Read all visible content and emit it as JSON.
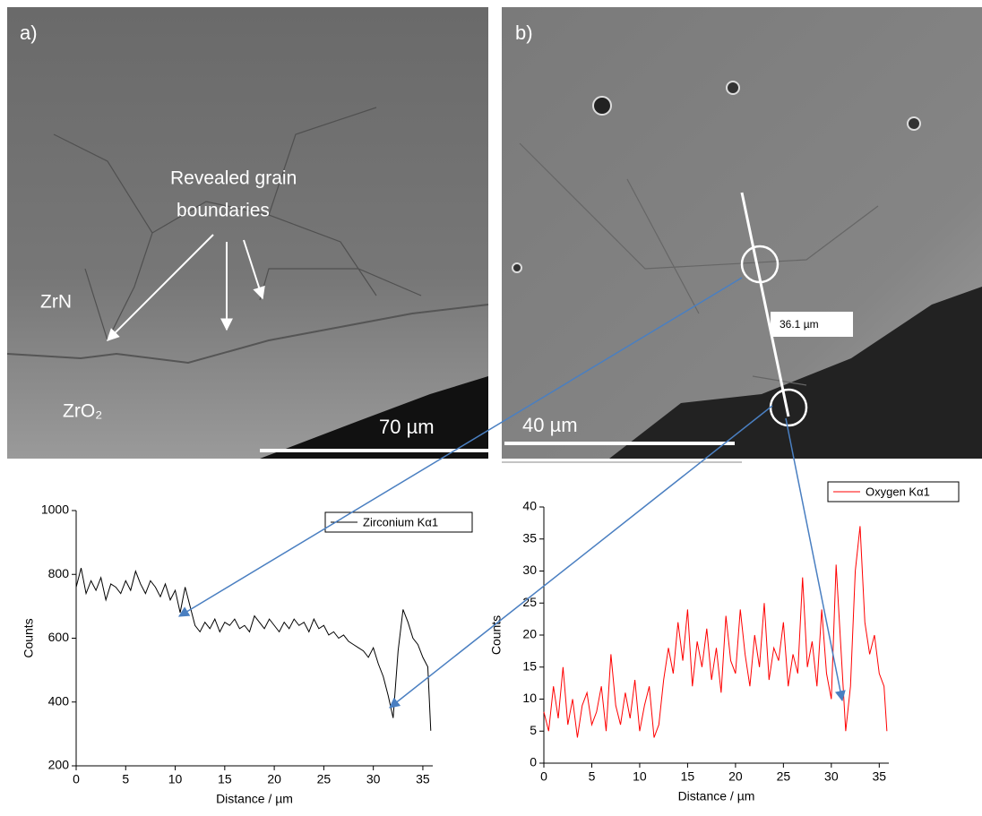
{
  "images": [
    {
      "label": "a)",
      "annotation_lines": [
        "Revealed grain",
        "boundaries"
      ],
      "phase_top": "ZrN",
      "phase_bottom": "ZrO₂",
      "scale_bar": "70 µm"
    },
    {
      "label": "b)",
      "line_length": "36.1 µm",
      "scale_bar": "40 µm"
    }
  ],
  "chart_data": [
    {
      "type": "line",
      "xlabel": "Distance / µm",
      "ylabel": "Counts",
      "x": [
        0,
        0.5,
        1,
        1.5,
        2,
        2.5,
        3,
        3.5,
        4,
        4.5,
        5,
        5.5,
        6,
        6.5,
        7,
        7.5,
        8,
        8.5,
        9,
        9.5,
        10,
        10.5,
        11,
        11.5,
        12,
        12.5,
        13,
        13.5,
        14,
        14.5,
        15,
        15.5,
        16,
        16.5,
        17,
        17.5,
        18,
        18.5,
        19,
        19.5,
        20,
        20.5,
        21,
        21.5,
        22,
        22.5,
        23,
        23.5,
        24,
        24.5,
        25,
        25.5,
        26,
        26.5,
        27,
        27.5,
        28,
        28.5,
        29,
        29.5,
        30,
        30.5,
        31,
        31.5,
        32,
        32.5,
        33,
        33.5,
        34,
        34.5,
        35,
        35.5,
        35.8
      ],
      "series": [
        {
          "name": "Zirconium Kα1",
          "color": "#000000",
          "values": [
            760,
            820,
            740,
            780,
            750,
            790,
            720,
            770,
            760,
            740,
            780,
            750,
            810,
            770,
            740,
            780,
            760,
            730,
            770,
            720,
            750,
            680,
            760,
            700,
            640,
            620,
            650,
            630,
            660,
            620,
            650,
            640,
            660,
            630,
            640,
            620,
            670,
            650,
            630,
            660,
            640,
            620,
            650,
            630,
            660,
            640,
            650,
            620,
            660,
            630,
            640,
            610,
            620,
            600,
            610,
            590,
            580,
            570,
            560,
            540,
            570,
            520,
            480,
            420,
            350,
            560,
            690,
            650,
            600,
            580,
            540,
            510,
            310
          ]
        }
      ],
      "xlim": [
        0,
        36
      ],
      "ylim": [
        200,
        1000
      ],
      "xticks": [
        0,
        5,
        10,
        15,
        20,
        25,
        30,
        35
      ],
      "yticks": [
        200,
        400,
        600,
        800,
        1000
      ]
    },
    {
      "type": "line",
      "xlabel": "Distance / µm",
      "ylabel": "Counts",
      "x": [
        0,
        0.5,
        1,
        1.5,
        2,
        2.5,
        3,
        3.5,
        4,
        4.5,
        5,
        5.5,
        6,
        6.5,
        7,
        7.5,
        8,
        8.5,
        9,
        9.5,
        10,
        10.5,
        11,
        11.5,
        12,
        12.5,
        13,
        13.5,
        14,
        14.5,
        15,
        15.5,
        16,
        16.5,
        17,
        17.5,
        18,
        18.5,
        19,
        19.5,
        20,
        20.5,
        21,
        21.5,
        22,
        22.5,
        23,
        23.5,
        24,
        24.5,
        25,
        25.5,
        26,
        26.5,
        27,
        27.5,
        28,
        28.5,
        29,
        29.5,
        30,
        30.5,
        31,
        31.5,
        32,
        32.5,
        33,
        33.5,
        34,
        34.5,
        35,
        35.5,
        35.8
      ],
      "series": [
        {
          "name": "Oxygen Kα1",
          "color": "#ff0000",
          "values": [
            8,
            5,
            12,
            7,
            15,
            6,
            10,
            4,
            9,
            11,
            6,
            8,
            12,
            5,
            17,
            9,
            6,
            11,
            7,
            13,
            5,
            9,
            12,
            4,
            6,
            13,
            18,
            14,
            22,
            16,
            24,
            12,
            19,
            15,
            21,
            13,
            18,
            11,
            23,
            16,
            14,
            24,
            17,
            12,
            20,
            15,
            25,
            13,
            18,
            16,
            22,
            12,
            17,
            14,
            29,
            15,
            19,
            12,
            24,
            14,
            10,
            31,
            18,
            5,
            12,
            30,
            37,
            22,
            17,
            20,
            14,
            12,
            5
          ]
        }
      ],
      "xlim": [
        0,
        36
      ],
      "ylim": [
        0,
        40
      ],
      "xticks": [
        0,
        5,
        10,
        15,
        20,
        25,
        30,
        35
      ],
      "yticks": [
        0,
        5,
        10,
        15,
        20,
        25,
        30,
        35,
        40
      ]
    }
  ]
}
